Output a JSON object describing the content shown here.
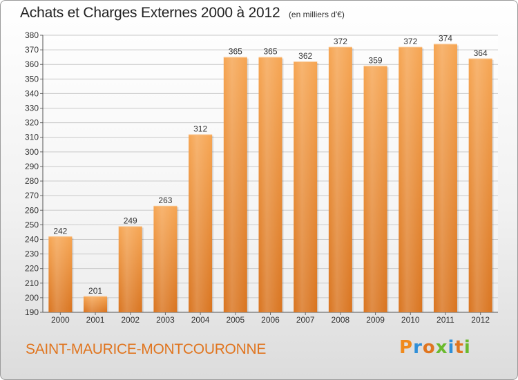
{
  "title": "Achats et Charges Externes 2000 à 2012",
  "unit": "(en milliers d'€)",
  "place": "SAINT-MAURICE-MONTCOURONNE",
  "brand": {
    "letters": [
      "P",
      "r",
      "o",
      "x",
      "i",
      "t",
      "i"
    ],
    "colors": [
      "#f08a1c",
      "#2f8fd8",
      "#e0751f",
      "#6aba2e",
      "#2f8fd8",
      "#e0751f",
      "#6aba2e"
    ]
  },
  "colors": {
    "bar_top": "#f6a552",
    "bar_bottom": "#d9741f",
    "grid": "#c8c8c8"
  },
  "chart_data": {
    "type": "bar",
    "categories": [
      "2000",
      "2001",
      "2002",
      "2003",
      "2004",
      "2005",
      "2006",
      "2007",
      "2008",
      "2009",
      "2010",
      "2011",
      "2012"
    ],
    "values": [
      242,
      201,
      249,
      263,
      312,
      365,
      365,
      362,
      372,
      359,
      372,
      374,
      364
    ],
    "ylim": [
      190,
      380
    ],
    "yticks": [
      190,
      200,
      210,
      220,
      230,
      240,
      250,
      260,
      270,
      280,
      290,
      300,
      310,
      320,
      330,
      340,
      350,
      360,
      370,
      380
    ],
    "grid": true,
    "xlabel": "",
    "ylabel": ""
  }
}
